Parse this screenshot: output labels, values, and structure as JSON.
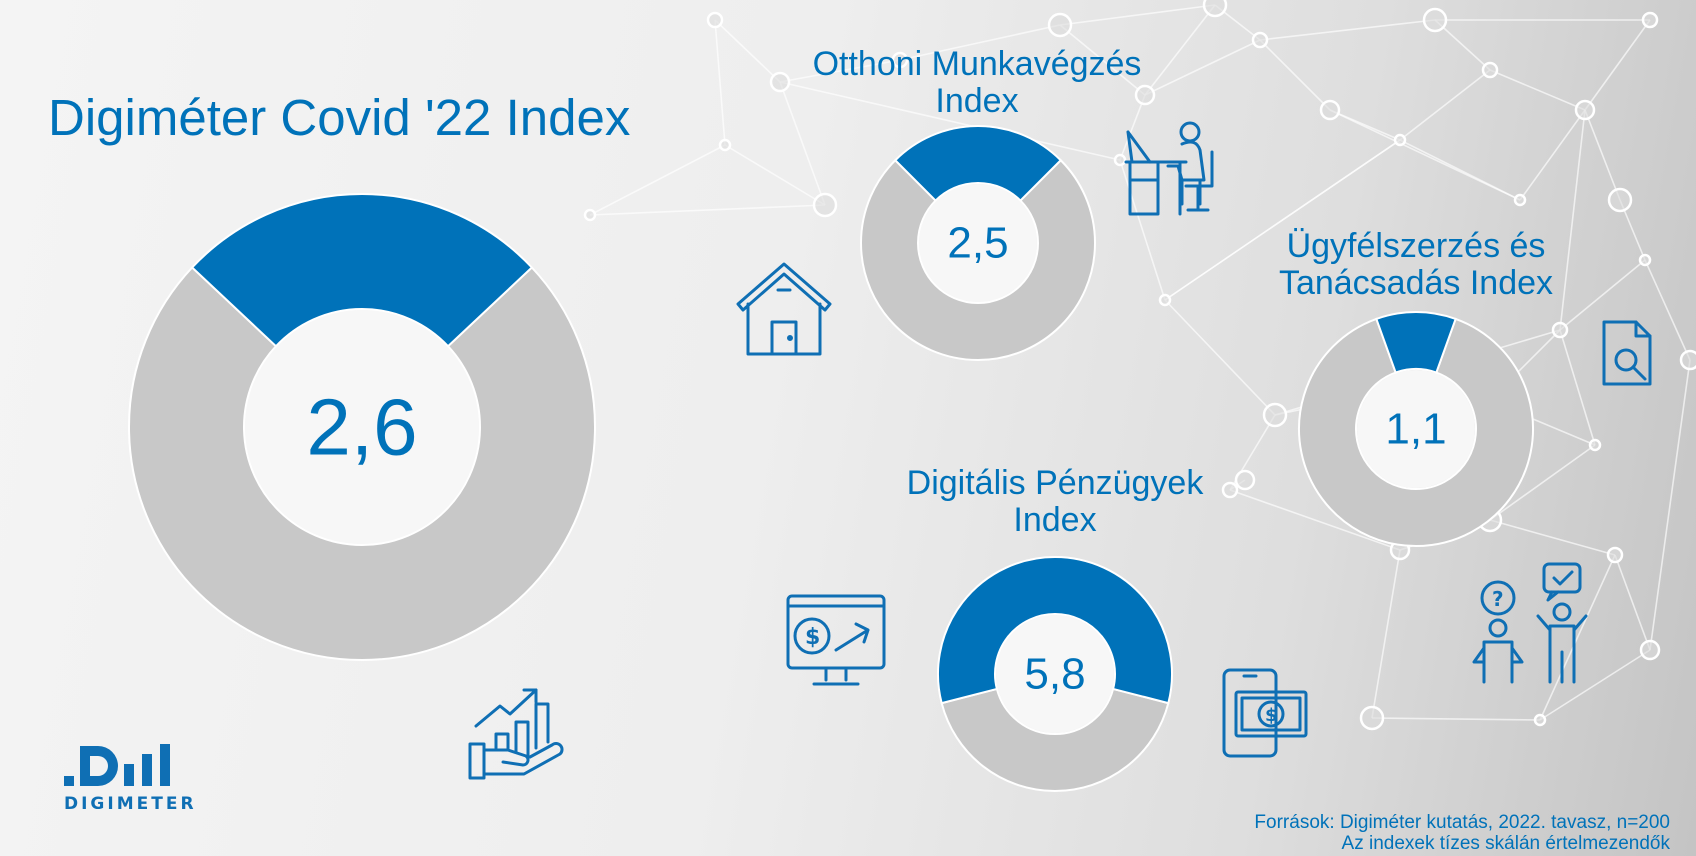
{
  "title": "Digiméter Covid '22 Index",
  "chart_data": [
    {
      "type": "pie",
      "name": "Digiméter Covid '22 Index",
      "value": 2.6,
      "value_label": "2,6",
      "max": 10,
      "label": ""
    },
    {
      "type": "pie",
      "name": "Otthoni Munkavégzés Index",
      "value": 2.5,
      "value_label": "2,5",
      "max": 10,
      "label": "Otthoni Munkavégzés\nIndex"
    },
    {
      "type": "pie",
      "name": "Ügyfélszerzés és Tanácsadás Index",
      "value": 1.1,
      "value_label": "1,1",
      "max": 10,
      "label": "Ügyfélszerzés és\nTanácsadás Index"
    },
    {
      "type": "pie",
      "name": "Digitális Pénzügyek Index",
      "value": 5.8,
      "value_label": "5,8",
      "max": 10,
      "label": "Digitális Pénzügyek\nIndex"
    }
  ],
  "colors": {
    "filled": "#0072b9",
    "remaining": "#c8c8c8",
    "text": "#0072b9"
  },
  "icons": [
    "growth-hand-icon",
    "house-icon",
    "desk-worker-icon",
    "document-search-icon",
    "monitor-dollar-icon",
    "phone-money-icon",
    "consultation-people-icon"
  ],
  "logo": {
    "text": "DIGIMETER"
  },
  "sources": {
    "line1": "Források: Digiméter kutatás, 2022. tavasz, n=200",
    "line2": "Az indexek tízes skálán értelmezendők"
  }
}
